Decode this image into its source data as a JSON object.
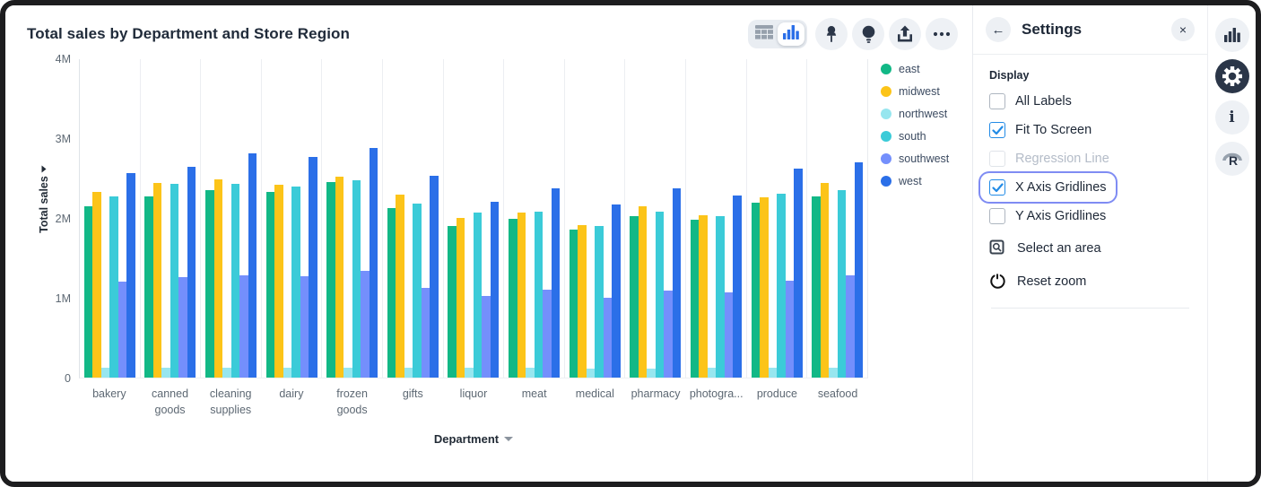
{
  "header": {
    "title": "Total sales by Department and Store Region",
    "toolbar": {
      "view_toggle": [
        {
          "icon": "table-view-icon",
          "active": false
        },
        {
          "icon": "chart-view-icon",
          "active": true
        }
      ],
      "buttons": [
        {
          "icon": "pin-icon"
        },
        {
          "icon": "lightbulb-icon"
        },
        {
          "icon": "export-icon"
        },
        {
          "icon": "more-options-icon"
        }
      ]
    }
  },
  "chart_data": {
    "type": "bar",
    "title": "Total sales by Department and Store Region",
    "xlabel": "Department",
    "ylabel": "Total sales",
    "y_ticks": [
      "0",
      "1M",
      "2M",
      "3M",
      "4M"
    ],
    "ylim_m": [
      0,
      4
    ],
    "x_gridlines": true,
    "y_gridlines": false,
    "legend_position": "right",
    "categories": [
      "bakery",
      "canned goods",
      "cleaning supplies",
      "dairy",
      "frozen goods",
      "gifts",
      "liquor",
      "meat",
      "medical",
      "pharmacy",
      "photogra...",
      "produce",
      "seafood"
    ],
    "series": [
      {
        "name": "east",
        "color": "#12b886",
        "values_m": [
          2.15,
          2.28,
          2.35,
          2.33,
          2.46,
          2.13,
          1.91,
          2.0,
          1.86,
          2.03,
          1.98,
          2.2,
          2.28
        ]
      },
      {
        "name": "midwest",
        "color": "#fcc419",
        "values_m": [
          2.33,
          2.45,
          2.49,
          2.42,
          2.52,
          2.3,
          2.01,
          2.07,
          1.92,
          2.15,
          2.04,
          2.26,
          2.45
        ]
      },
      {
        "name": "northwest",
        "color": "#97e6ef",
        "values_m": [
          0.12,
          0.12,
          0.12,
          0.12,
          0.12,
          0.12,
          0.12,
          0.12,
          0.11,
          0.11,
          0.12,
          0.12,
          0.12
        ]
      },
      {
        "name": "south",
        "color": "#3bcbd8",
        "values_m": [
          2.28,
          2.43,
          2.43,
          2.4,
          2.48,
          2.19,
          2.07,
          2.08,
          1.9,
          2.08,
          2.03,
          2.31,
          2.36
        ]
      },
      {
        "name": "southwest",
        "color": "#748ffc",
        "values_m": [
          1.21,
          1.26,
          1.28,
          1.27,
          1.34,
          1.13,
          1.02,
          1.1,
          1.0,
          1.09,
          1.07,
          1.22,
          1.29
        ]
      },
      {
        "name": "west",
        "color": "#2b6fe8",
        "values_m": [
          2.57,
          2.65,
          2.82,
          2.77,
          2.89,
          2.53,
          2.21,
          2.38,
          2.17,
          2.38,
          2.29,
          2.63,
          2.7
        ]
      }
    ]
  },
  "settings": {
    "title": "Settings",
    "section_label": "Display",
    "checkboxes": [
      {
        "label": "All Labels",
        "checked": false,
        "disabled": false,
        "focused": false
      },
      {
        "label": "Fit To Screen",
        "checked": true,
        "disabled": false,
        "focused": false
      },
      {
        "label": "Regression Line",
        "checked": false,
        "disabled": true,
        "focused": false
      },
      {
        "label": "X Axis Gridlines",
        "checked": true,
        "disabled": false,
        "focused": true
      },
      {
        "label": "Y Axis Gridlines",
        "checked": false,
        "disabled": false,
        "focused": false
      }
    ],
    "actions": [
      {
        "label": "Select an area",
        "icon": "select-area-icon"
      },
      {
        "label": "Reset zoom",
        "icon": "reset-zoom-icon"
      }
    ]
  },
  "side_strip": {
    "icons": [
      {
        "icon": "bar-chart-icon",
        "active": false
      },
      {
        "icon": "settings-gear-icon",
        "active": true
      },
      {
        "icon": "info-icon",
        "active": false
      },
      {
        "icon": "r-logo-icon",
        "active": false
      }
    ]
  },
  "glyphs": {
    "back_arrow": "←",
    "close": "×",
    "info": "i"
  },
  "colors": {
    "accent_blue": "#228be6",
    "focus_ring": "#7f8cf3",
    "icon_dark": "#2b3648"
  }
}
